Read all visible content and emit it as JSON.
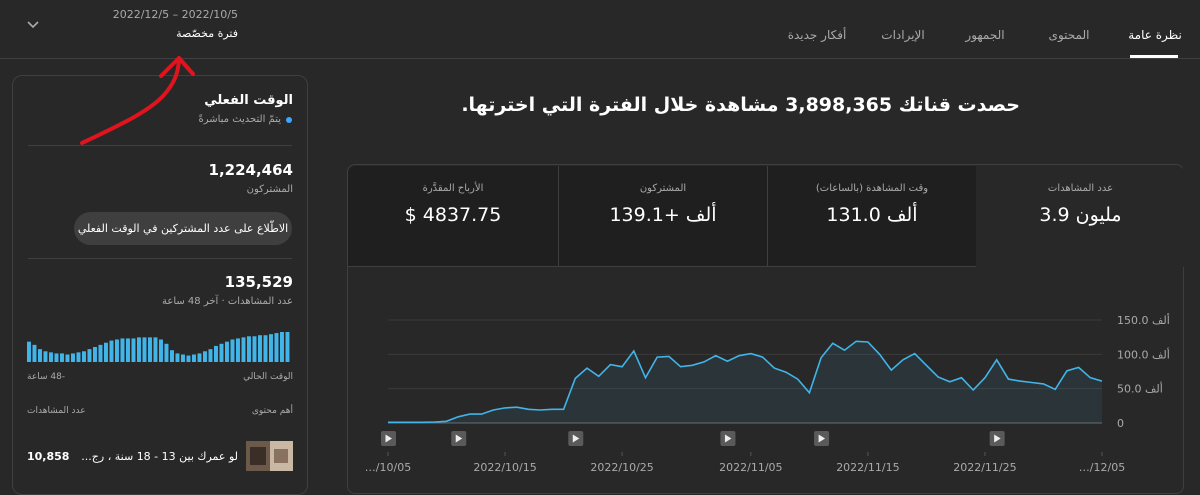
{
  "tabs": [
    "نظرة عامة",
    "المحتوى",
    "الجمهور",
    "الإيرادات",
    "أفكار جديدة"
  ],
  "date_range": {
    "range": "2022/12/5 – 2022/10/5",
    "label": "فترة مخصّصة"
  },
  "headline": "حصدت قناتك 3,898,365 مشاهدة خلال الفترة التي اخترتها.",
  "metrics": [
    {
      "label": "عدد المشاهدات",
      "value": "3.9 مليون"
    },
    {
      "label": "وقت المشاهدة (بالساعات)",
      "value": "131.0 ألف"
    },
    {
      "label": "المشتركون",
      "value": "139.1+ ألف"
    },
    {
      "label": "الأرباح المقدَّرة",
      "value": "$ 4837.75"
    }
  ],
  "realtime": {
    "title": "الوقت الفعلي",
    "status": "يتمّ التحديث مباشرةً",
    "subscribers": "1,224,464",
    "subscribers_label": "المشتركون",
    "button": "الاطّلاع على عدد المشتركين في الوقت الفعلي",
    "views": "135,529",
    "views_label": "عدد المشاهدات · آخر 48 ساعة",
    "top_content_label": "أهم محتوى",
    "top_views_label": "عدد المشاهدات",
    "top_item_title": "لو عمرك بين 13 - 18 سنة ، رج...",
    "top_item_views": "10,858"
  },
  "chart_data": [
    {
      "type": "line",
      "color": "#41b4e8",
      "x": [
        "2022/10/05",
        "2022/10/06",
        "2022/10/07",
        "2022/10/08",
        "2022/10/09",
        "2022/10/10",
        "2022/10/11",
        "2022/10/12",
        "2022/10/13",
        "2022/10/14",
        "2022/10/15",
        "2022/10/16",
        "2022/10/17",
        "2022/10/18",
        "2022/10/19",
        "2022/10/20",
        "2022/10/21",
        "2022/10/22",
        "2022/10/23",
        "2022/10/24",
        "2022/10/25",
        "2022/10/26",
        "2022/10/27",
        "2022/10/28",
        "2022/10/29",
        "2022/10/30",
        "2022/10/31",
        "2022/11/01",
        "2022/11/02",
        "2022/11/03",
        "2022/11/04",
        "2022/11/05",
        "2022/11/06",
        "2022/11/07",
        "2022/11/08",
        "2022/11/09",
        "2022/11/10",
        "2022/11/11",
        "2022/11/12",
        "2022/11/13",
        "2022/11/14",
        "2022/11/15",
        "2022/11/16",
        "2022/11/17",
        "2022/11/18",
        "2022/11/19",
        "2022/11/20",
        "2022/11/21",
        "2022/11/22",
        "2022/11/23",
        "2022/11/24",
        "2022/11/25",
        "2022/11/26",
        "2022/11/27",
        "2022/11/28",
        "2022/11/29",
        "2022/11/30",
        "2022/12/01",
        "2022/12/02",
        "2022/12/03",
        "2022/12/04",
        "2022/12/05"
      ],
      "values": [
        1000,
        1000,
        1000,
        1000,
        1500,
        2500,
        9000,
        13000,
        13000,
        19000,
        22000,
        23000,
        20000,
        19000,
        20000,
        20000,
        65000,
        80000,
        68000,
        85000,
        82000,
        105000,
        66000,
        96000,
        97000,
        82000,
        84000,
        89000,
        98000,
        90000,
        98000,
        101000,
        96000,
        80000,
        74000,
        64000,
        44000,
        95000,
        116000,
        106000,
        119000,
        118000,
        100000,
        77000,
        92000,
        101000,
        84000,
        67000,
        60000,
        66000,
        48000,
        66000,
        92000,
        64000,
        61000,
        59000,
        57000,
        49000,
        76000,
        81000,
        66000,
        61000
      ],
      "ylim": [
        0,
        150000
      ],
      "yticks": [
        0,
        {
          "value": 50000,
          "label": "50.0 ألف"
        },
        {
          "value": 100000,
          "label": "100.0 ألف"
        },
        {
          "value": 150000,
          "label": "150.0 ألف"
        }
      ],
      "xticks": [
        {
          "value": "2022/10/05",
          "label": "…/10/05"
        },
        "2022/10/15",
        "2022/10/25",
        "2022/11/05",
        "2022/11/15",
        "2022/11/25",
        {
          "value": "2022/12/05",
          "label": "…/12/05"
        }
      ],
      "video_markers": [
        "2022/10/05",
        "2022/10/11",
        "2022/10/21",
        "2022/11/03",
        "2022/11/11",
        "2022/11/26"
      ],
      "grid": true
    },
    {
      "type": "bar",
      "color": "#41b4e8",
      "values": [
        19,
        16,
        12,
        10,
        9,
        8,
        8,
        7,
        8,
        9,
        10,
        12,
        14,
        16,
        18,
        20,
        21,
        22,
        22,
        22,
        23,
        23,
        23,
        23,
        21,
        17,
        11,
        8,
        7,
        6,
        7,
        8,
        10,
        12,
        15,
        17,
        19,
        21,
        22,
        23,
        24,
        24,
        25,
        25,
        26,
        27,
        28,
        28
      ],
      "x_start_label": "-48 ساعة",
      "x_end_label": "الوقت الحالي"
    }
  ]
}
